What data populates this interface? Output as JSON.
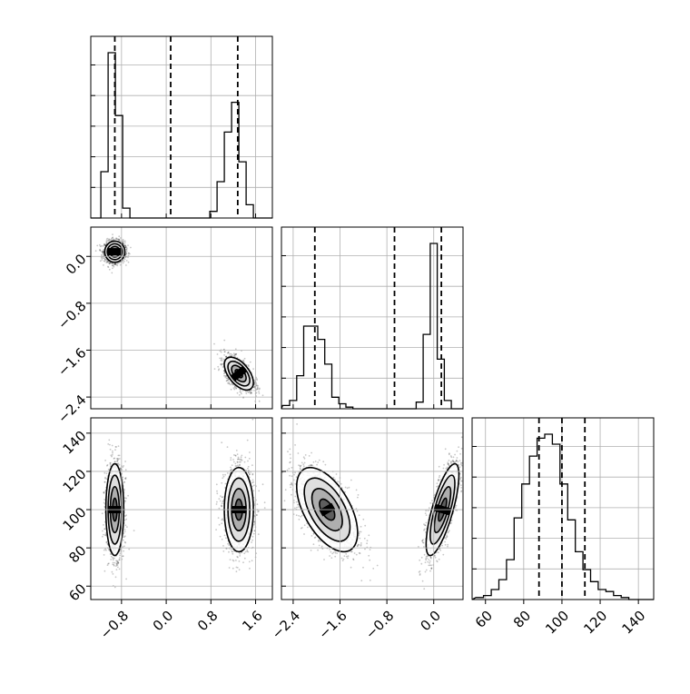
{
  "chart_data": {
    "type": "corner",
    "variables": [
      {
        "id": "p1",
        "range": [
          -1.35,
          1.9
        ],
        "ticks": [
          "-0.8",
          "0.0",
          "0.8",
          "1.6"
        ],
        "tick_values": [
          -0.8,
          0.0,
          0.8,
          1.6
        ]
      },
      {
        "id": "p2",
        "range": [
          -2.6,
          0.5
        ],
        "ticks": [
          "-2.4",
          "-1.6",
          "-0.8",
          "0.0"
        ],
        "tick_values": [
          -2.4,
          -1.6,
          -0.8,
          0.0
        ]
      },
      {
        "id": "p3",
        "range": [
          53,
          148
        ],
        "ticks": [
          "60",
          "80",
          "100",
          "120",
          "140"
        ],
        "tick_values": [
          60,
          80,
          100,
          120,
          140
        ]
      }
    ],
    "histograms": [
      {
        "variable": "p1",
        "bin_edges": [
          -1.3,
          -1.17,
          -1.04,
          -0.91,
          -0.78,
          -0.65,
          -0.52,
          -0.39,
          -0.26,
          -0.13,
          0.0,
          0.13,
          0.26,
          0.39,
          0.52,
          0.65,
          0.78,
          0.91,
          1.04,
          1.17,
          1.3,
          1.43,
          1.56,
          1.69,
          1.82
        ],
        "counts": [
          0,
          0.28,
          1.0,
          0.62,
          0.06,
          0,
          0,
          0,
          0,
          0,
          0,
          0,
          0,
          0,
          0,
          0,
          0.04,
          0.22,
          0.52,
          0.7,
          0.34,
          0.08,
          0,
          0
        ],
        "quantiles": [
          -0.92,
          0.08,
          1.28
        ]
      },
      {
        "variable": "p2",
        "bin_edges": [
          -2.58,
          -2.46,
          -2.34,
          -2.22,
          -2.1,
          -1.98,
          -1.86,
          -1.74,
          -1.62,
          -1.5,
          -1.38,
          -1.26,
          -1.14,
          -1.02,
          -0.9,
          -0.78,
          -0.66,
          -0.54,
          -0.42,
          -0.3,
          -0.18,
          -0.06,
          0.06,
          0.18,
          0.3,
          0.42
        ],
        "counts": [
          0.02,
          0.05,
          0.2,
          0.5,
          0.5,
          0.42,
          0.27,
          0.07,
          0.03,
          0.01,
          0,
          0,
          0,
          0,
          0,
          0,
          0,
          0,
          0,
          0.04,
          0.45,
          1.0,
          0.3,
          0.05,
          0
        ],
        "quantiles": [
          -2.03,
          -0.67,
          0.13
        ]
      },
      {
        "variable": "p3",
        "bin_edges": [
          55,
          59,
          63,
          67,
          71,
          75,
          79,
          83,
          87,
          91,
          95,
          99,
          103,
          107,
          111,
          115,
          119,
          123,
          127,
          131,
          135,
          139,
          143,
          147
        ],
        "counts": [
          0.01,
          0.02,
          0.05,
          0.1,
          0.2,
          0.41,
          0.58,
          0.72,
          0.81,
          0.83,
          0.78,
          0.58,
          0.4,
          0.24,
          0.15,
          0.09,
          0.05,
          0.04,
          0.02,
          0.01,
          0.0,
          0.0,
          0.0
        ],
        "quantiles": [
          88,
          100,
          112
        ]
      }
    ],
    "pairs": [
      {
        "x": "p1",
        "y": "p2",
        "clusters": [
          {
            "center": [
              -0.92,
              0.08
            ],
            "sd": [
              0.09,
              0.09
            ],
            "rho": 0.0,
            "n": 500
          },
          {
            "center": [
              1.3,
              -2.0
            ],
            "sd": [
              0.13,
              0.14
            ],
            "rho": -0.55,
            "n": 500
          }
        ]
      },
      {
        "x": "p1",
        "y": "p3",
        "clusters": [
          {
            "center": [
              -0.92,
              100
            ],
            "sd": [
              0.08,
              12
            ],
            "rho": 0.0,
            "n": 500
          },
          {
            "center": [
              1.3,
              100
            ],
            "sd": [
              0.13,
              11
            ],
            "rho": 0.0,
            "n": 500
          }
        ]
      },
      {
        "x": "p2",
        "y": "p3",
        "clusters": [
          {
            "center": [
              -1.82,
              100
            ],
            "sd": [
              0.26,
              11
            ],
            "rho": -0.55,
            "n": 500
          },
          {
            "center": [
              0.15,
              100
            ],
            "sd": [
              0.14,
              12
            ],
            "rho": 0.75,
            "n": 500
          }
        ]
      }
    ],
    "grid": true,
    "quantile_lines": "dashed"
  }
}
